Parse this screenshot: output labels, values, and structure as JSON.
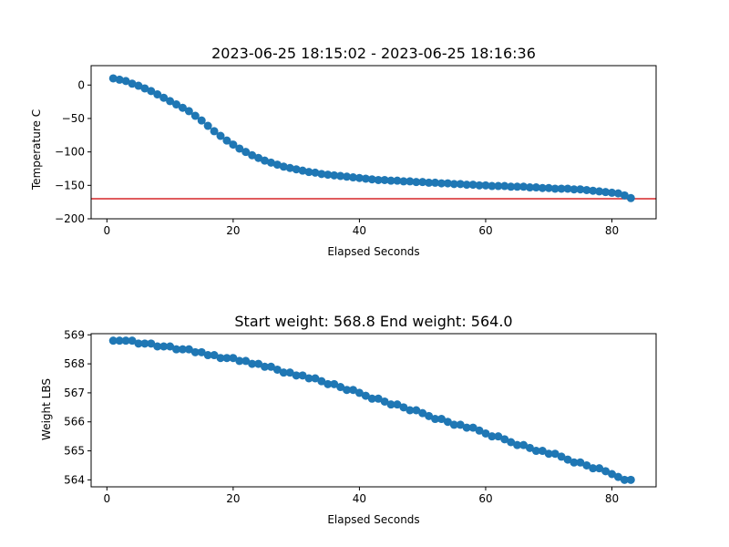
{
  "chart_data": [
    {
      "type": "scatter",
      "title": "2023-06-25 18:15:02 - 2023-06-25 18:16:36",
      "xlabel": "Elapsed Seconds",
      "ylabel": "Temperature C",
      "xlim": [
        -2.5,
        87
      ],
      "ylim": [
        -200,
        29
      ],
      "xticks": [
        0,
        20,
        40,
        60,
        80
      ],
      "yticks": [
        0,
        -50,
        -100,
        -150,
        -200
      ],
      "grid": false,
      "marker_color": "#1f77b4",
      "reference_line": {
        "y": -170,
        "color": "#d62728"
      },
      "x": [
        1,
        2,
        3,
        4,
        5,
        6,
        7,
        8,
        9,
        10,
        11,
        12,
        13,
        14,
        15,
        16,
        17,
        18,
        19,
        20,
        21,
        22,
        23,
        24,
        25,
        26,
        27,
        28,
        29,
        30,
        31,
        32,
        33,
        34,
        35,
        36,
        37,
        38,
        39,
        40,
        41,
        42,
        43,
        44,
        45,
        46,
        47,
        48,
        49,
        50,
        51,
        52,
        53,
        54,
        55,
        56,
        57,
        58,
        59,
        60,
        61,
        62,
        63,
        64,
        65,
        66,
        67,
        68,
        69,
        70,
        71,
        72,
        73,
        74,
        75,
        76,
        77,
        78,
        79,
        80,
        81,
        82,
        83
      ],
      "y": [
        10,
        8,
        6,
        2,
        -1,
        -5,
        -9,
        -14,
        -19,
        -24,
        -29,
        -34,
        -39,
        -46,
        -53,
        -61,
        -69,
        -76,
        -83,
        -89,
        -95,
        -100,
        -105,
        -109,
        -113,
        -116,
        -119,
        -122,
        -124,
        -126,
        -128,
        -130,
        -131,
        -133,
        -134,
        -135,
        -136,
        -137,
        -138,
        -139,
        -140,
        -141,
        -142,
        -142,
        -143,
        -143,
        -144,
        -144,
        -145,
        -145,
        -146,
        -146,
        -147,
        -147,
        -148,
        -148,
        -149,
        -149,
        -150,
        -150,
        -151,
        -151,
        -151,
        -152,
        -152,
        -152,
        -153,
        -153,
        -154,
        -154,
        -155,
        -155,
        -155,
        -156,
        -156,
        -157,
        -158,
        -159,
        -160,
        -161,
        -162,
        -165,
        -169
      ]
    },
    {
      "type": "scatter",
      "title": "Start weight: 568.8 End weight: 564.0",
      "xlabel": "Elapsed Seconds",
      "ylabel": "Weight LBS",
      "xlim": [
        -2.5,
        87
      ],
      "ylim": [
        563.76,
        569.04
      ],
      "xticks": [
        0,
        20,
        40,
        60,
        80
      ],
      "yticks": [
        569,
        568,
        567,
        566,
        565,
        564
      ],
      "grid": false,
      "marker_color": "#1f77b4",
      "x": [
        1,
        2,
        3,
        4,
        5,
        6,
        7,
        8,
        9,
        10,
        11,
        12,
        13,
        14,
        15,
        16,
        17,
        18,
        19,
        20,
        21,
        22,
        23,
        24,
        25,
        26,
        27,
        28,
        29,
        30,
        31,
        32,
        33,
        34,
        35,
        36,
        37,
        38,
        39,
        40,
        41,
        42,
        43,
        44,
        45,
        46,
        47,
        48,
        49,
        50,
        51,
        52,
        53,
        54,
        55,
        56,
        57,
        58,
        59,
        60,
        61,
        62,
        63,
        64,
        65,
        66,
        67,
        68,
        69,
        70,
        71,
        72,
        73,
        74,
        75,
        76,
        77,
        78,
        79,
        80,
        81,
        82,
        83
      ],
      "y": [
        568.8,
        568.8,
        568.8,
        568.8,
        568.7,
        568.7,
        568.7,
        568.6,
        568.6,
        568.6,
        568.5,
        568.5,
        568.5,
        568.4,
        568.4,
        568.3,
        568.3,
        568.2,
        568.2,
        568.2,
        568.1,
        568.1,
        568.0,
        568.0,
        567.9,
        567.9,
        567.8,
        567.7,
        567.7,
        567.6,
        567.6,
        567.5,
        567.5,
        567.4,
        567.3,
        567.3,
        567.2,
        567.1,
        567.1,
        567.0,
        566.9,
        566.8,
        566.8,
        566.7,
        566.6,
        566.6,
        566.5,
        566.4,
        566.4,
        566.3,
        566.2,
        566.1,
        566.1,
        566.0,
        565.9,
        565.9,
        565.8,
        565.8,
        565.7,
        565.6,
        565.5,
        565.5,
        565.4,
        565.3,
        565.2,
        565.2,
        565.1,
        565.0,
        565.0,
        564.9,
        564.9,
        564.8,
        564.7,
        564.6,
        564.6,
        564.5,
        564.4,
        564.4,
        564.3,
        564.2,
        564.1,
        564.0,
        564.0
      ]
    }
  ]
}
